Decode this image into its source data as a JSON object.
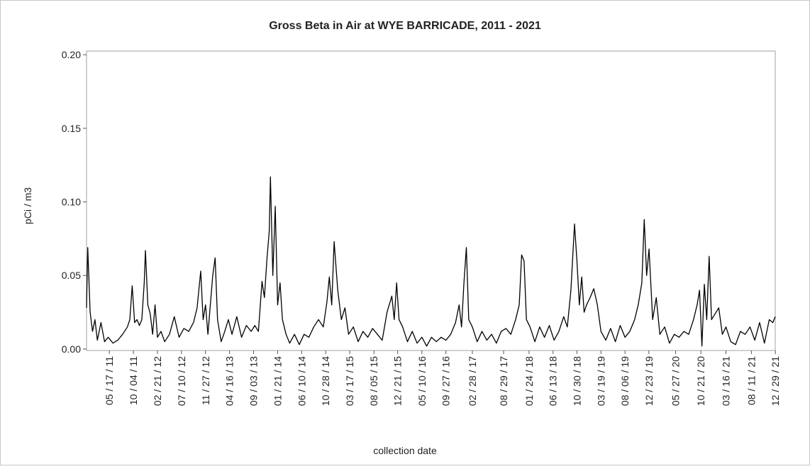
{
  "chart_data": {
    "type": "line",
    "title": "Gross Beta in Air at WYE BARRICADE, 2011 - 2021",
    "xlabel": "collection date",
    "ylabel": "pCi / m3",
    "color": "#000000",
    "x": [
      "2011-01-04",
      "2011-01-11",
      "2011-01-25",
      "2011-02-08",
      "2011-02-22",
      "2011-03-08",
      "2011-03-29",
      "2011-04-19",
      "2011-05-10",
      "2011-06-07",
      "2011-07-05",
      "2011-08-02",
      "2011-08-30",
      "2011-09-13",
      "2011-09-27",
      "2011-10-11",
      "2011-10-25",
      "2011-11-08",
      "2011-11-22",
      "2011-12-06",
      "2011-12-13",
      "2011-12-27",
      "2012-01-10",
      "2012-01-24",
      "2012-02-07",
      "2012-02-21",
      "2012-03-13",
      "2012-04-03",
      "2012-05-01",
      "2012-05-29",
      "2012-06-26",
      "2012-07-24",
      "2012-08-21",
      "2012-09-18",
      "2012-10-09",
      "2012-10-30",
      "2012-11-13",
      "2012-11-27",
      "2012-12-11",
      "2013-01-08",
      "2013-01-22",
      "2013-02-05",
      "2013-02-26",
      "2013-03-19",
      "2013-04-09",
      "2013-04-30",
      "2013-05-28",
      "2013-06-25",
      "2013-07-23",
      "2013-08-20",
      "2013-09-10",
      "2013-10-01",
      "2013-10-22",
      "2013-11-05",
      "2013-11-19",
      "2013-12-03",
      "2013-12-10",
      "2013-12-24",
      "2014-01-07",
      "2014-01-21",
      "2014-02-04",
      "2014-02-18",
      "2014-03-11",
      "2014-04-01",
      "2014-04-29",
      "2014-05-27",
      "2014-06-24",
      "2014-07-22",
      "2014-08-19",
      "2014-09-16",
      "2014-10-14",
      "2014-11-04",
      "2014-11-18",
      "2014-12-02",
      "2014-12-16",
      "2015-01-06",
      "2015-01-27",
      "2015-02-17",
      "2015-03-10",
      "2015-04-07",
      "2015-05-05",
      "2015-06-02",
      "2015-06-30",
      "2015-07-28",
      "2015-08-25",
      "2015-09-22",
      "2015-10-20",
      "2015-11-17",
      "2015-12-01",
      "2015-12-15",
      "2015-12-29",
      "2016-01-19",
      "2016-02-16",
      "2016-03-15",
      "2016-04-12",
      "2016-05-10",
      "2016-06-07",
      "2016-07-05",
      "2016-08-02",
      "2016-08-30",
      "2016-09-27",
      "2016-10-25",
      "2016-11-22",
      "2016-12-13",
      "2016-12-27",
      "2017-01-10",
      "2017-01-24",
      "2017-02-07",
      "2017-02-28",
      "2017-03-28",
      "2017-04-25",
      "2017-05-23",
      "2017-06-20",
      "2017-07-18",
      "2017-08-15",
      "2017-09-12",
      "2017-10-10",
      "2017-11-07",
      "2017-11-28",
      "2017-12-12",
      "2017-12-26",
      "2018-01-09",
      "2018-01-30",
      "2018-02-27",
      "2018-03-27",
      "2018-04-24",
      "2018-05-22",
      "2018-06-19",
      "2018-07-17",
      "2018-08-14",
      "2018-09-04",
      "2018-09-25",
      "2018-10-16",
      "2018-10-30",
      "2018-11-13",
      "2018-11-27",
      "2018-12-11",
      "2018-12-25",
      "2019-01-15",
      "2019-02-05",
      "2019-02-26",
      "2019-03-19",
      "2019-04-16",
      "2019-05-14",
      "2019-06-11",
      "2019-07-09",
      "2019-08-06",
      "2019-09-03",
      "2019-10-01",
      "2019-10-22",
      "2019-11-12",
      "2019-11-26",
      "2019-12-10",
      "2019-12-24",
      "2020-01-14",
      "2020-02-04",
      "2020-02-25",
      "2020-03-24",
      "2020-04-21",
      "2020-05-19",
      "2020-06-16",
      "2020-07-14",
      "2020-08-11",
      "2020-09-08",
      "2020-09-29",
      "2020-10-13",
      "2020-10-27",
      "2020-11-10",
      "2020-11-24",
      "2020-12-08",
      "2020-12-22",
      "2021-01-12",
      "2021-02-02",
      "2021-02-23",
      "2021-03-16",
      "2021-04-13",
      "2021-05-11",
      "2021-06-08",
      "2021-07-06",
      "2021-08-03",
      "2021-08-31",
      "2021-09-28",
      "2021-10-26",
      "2021-11-23",
      "2021-12-14",
      "2021-12-28"
    ],
    "values": [
      0.028,
      0.069,
      0.025,
      0.012,
      0.02,
      0.006,
      0.018,
      0.005,
      0.008,
      0.004,
      0.006,
      0.01,
      0.015,
      0.02,
      0.043,
      0.018,
      0.02,
      0.016,
      0.02,
      0.045,
      0.067,
      0.03,
      0.024,
      0.01,
      0.03,
      0.008,
      0.012,
      0.005,
      0.01,
      0.022,
      0.008,
      0.014,
      0.012,
      0.018,
      0.028,
      0.053,
      0.02,
      0.03,
      0.01,
      0.05,
      0.062,
      0.02,
      0.005,
      0.012,
      0.02,
      0.01,
      0.022,
      0.008,
      0.016,
      0.012,
      0.016,
      0.012,
      0.046,
      0.035,
      0.06,
      0.08,
      0.117,
      0.05,
      0.097,
      0.03,
      0.045,
      0.02,
      0.01,
      0.004,
      0.01,
      0.003,
      0.01,
      0.008,
      0.015,
      0.02,
      0.015,
      0.032,
      0.049,
      0.03,
      0.073,
      0.04,
      0.02,
      0.028,
      0.01,
      0.015,
      0.005,
      0.012,
      0.008,
      0.014,
      0.01,
      0.006,
      0.025,
      0.036,
      0.02,
      0.045,
      0.02,
      0.015,
      0.005,
      0.012,
      0.004,
      0.008,
      0.002,
      0.008,
      0.005,
      0.008,
      0.006,
      0.01,
      0.018,
      0.03,
      0.015,
      0.045,
      0.069,
      0.02,
      0.015,
      0.005,
      0.012,
      0.006,
      0.01,
      0.004,
      0.012,
      0.014,
      0.01,
      0.02,
      0.03,
      0.064,
      0.06,
      0.02,
      0.015,
      0.005,
      0.015,
      0.008,
      0.016,
      0.006,
      0.012,
      0.022,
      0.015,
      0.04,
      0.085,
      0.06,
      0.03,
      0.049,
      0.025,
      0.03,
      0.035,
      0.041,
      0.03,
      0.012,
      0.006,
      0.014,
      0.005,
      0.016,
      0.008,
      0.012,
      0.02,
      0.03,
      0.045,
      0.088,
      0.05,
      0.068,
      0.02,
      0.035,
      0.01,
      0.015,
      0.004,
      0.01,
      0.008,
      0.012,
      0.01,
      0.02,
      0.03,
      0.04,
      0.002,
      0.044,
      0.02,
      0.063,
      0.02,
      0.024,
      0.028,
      0.01,
      0.015,
      0.005,
      0.003,
      0.012,
      0.01,
      0.015,
      0.006,
      0.018,
      0.004,
      0.02,
      0.018,
      0.022
    ],
    "xlim": [
      "2011-01-04",
      "2021-12-28"
    ],
    "xticks": [
      {
        "value": "2011-05-17",
        "label": "05 / 17 / 11"
      },
      {
        "value": "2011-10-04",
        "label": "10 / 04 / 11"
      },
      {
        "value": "2012-02-21",
        "label": "02 / 21 / 12"
      },
      {
        "value": "2012-07-10",
        "label": "07 / 10 / 12"
      },
      {
        "value": "2012-11-27",
        "label": "11 / 27 / 12"
      },
      {
        "value": "2013-04-16",
        "label": "04 / 16 / 13"
      },
      {
        "value": "2013-09-03",
        "label": "09 / 03 / 13"
      },
      {
        "value": "2014-01-21",
        "label": "01 / 21 / 14"
      },
      {
        "value": "2014-06-10",
        "label": "06 / 10 / 14"
      },
      {
        "value": "2014-10-28",
        "label": "10 / 28 / 14"
      },
      {
        "value": "2015-03-17",
        "label": "03 / 17 / 15"
      },
      {
        "value": "2015-08-05",
        "label": "08 / 05 / 15"
      },
      {
        "value": "2015-12-21",
        "label": "12 / 21 / 15"
      },
      {
        "value": "2016-05-10",
        "label": "05 / 10 / 16"
      },
      {
        "value": "2016-09-27",
        "label": "09 / 27 / 16"
      },
      {
        "value": "2017-02-28",
        "label": "02 / 28 / 17"
      },
      {
        "value": "2017-08-29",
        "label": "08 / 29 / 17"
      },
      {
        "value": "2018-01-24",
        "label": "01 / 24 / 18"
      },
      {
        "value": "2018-06-13",
        "label": "06 / 13 / 18"
      },
      {
        "value": "2018-10-30",
        "label": "10 / 30 / 18"
      },
      {
        "value": "2019-03-19",
        "label": "03 / 19 / 19"
      },
      {
        "value": "2019-08-06",
        "label": "08 / 06 / 19"
      },
      {
        "value": "2019-12-23",
        "label": "12 / 23 / 19"
      },
      {
        "value": "2020-05-27",
        "label": "05 / 27 / 20"
      },
      {
        "value": "2020-10-21",
        "label": "10 / 21 / 20"
      },
      {
        "value": "2021-03-16",
        "label": "03 / 16 / 21"
      },
      {
        "value": "2021-08-11",
        "label": "08 / 11 / 21"
      },
      {
        "value": "2021-12-29",
        "label": "12 / 29 / 21"
      }
    ],
    "ylim": [
      -0.001,
      0.2025
    ],
    "yticks": [
      {
        "value": 0,
        "label": "0.00"
      },
      {
        "value": 0.05,
        "label": "0.05"
      },
      {
        "value": 0.1,
        "label": "0.10"
      },
      {
        "value": 0.15,
        "label": "0.15"
      },
      {
        "value": 0.2,
        "label": "0.20"
      }
    ],
    "grid": false
  }
}
